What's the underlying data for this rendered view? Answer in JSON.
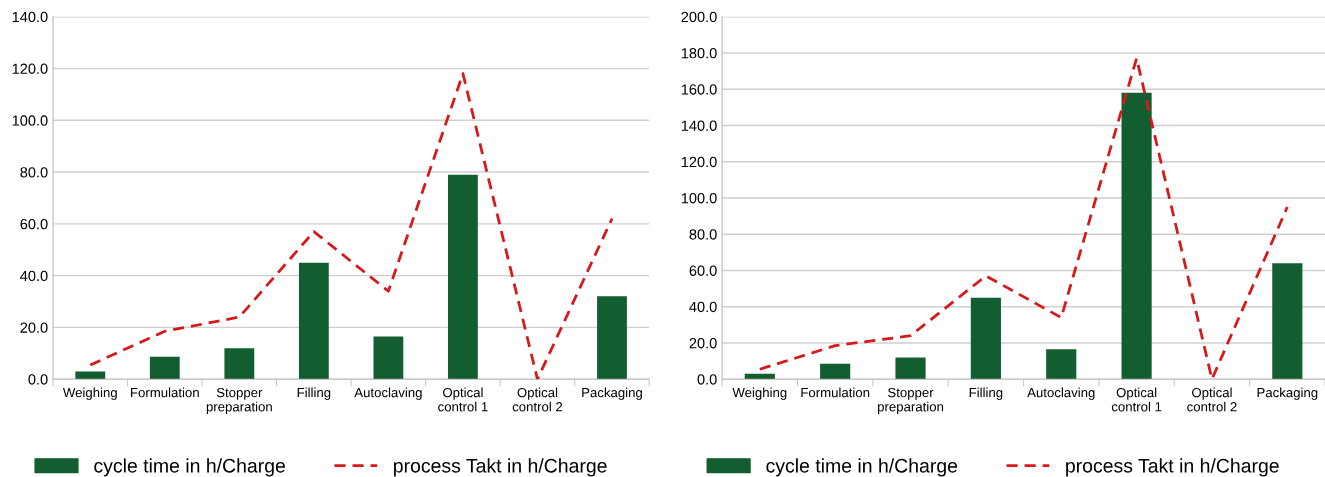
{
  "chart_data": [
    {
      "type": "bar",
      "categories": [
        "Weighing",
        "Formulation",
        "Stopper\npreparation",
        "Filling",
        "Autoclaving",
        "Optical\ncontrol 1",
        "Optical\ncontrol 2",
        "Packaging"
      ],
      "series": [
        {
          "name": "cycle time in h/Charge",
          "color": "#135e30",
          "values": [
            3,
            8.7,
            12,
            45,
            16.5,
            79,
            0,
            32
          ]
        },
        {
          "name": "process Takt in h/Charge",
          "type": "line",
          "color": "#d7191c",
          "line_style": "dashed",
          "values": [
            5.5,
            18.5,
            24,
            57,
            34,
            118,
            0,
            62
          ]
        }
      ],
      "ylim": [
        0,
        140
      ],
      "yticks": [
        {
          "value": 0,
          "label": "0.0"
        },
        {
          "value": 20,
          "label": "20.0"
        },
        {
          "value": 40,
          "label": "40.0"
        },
        {
          "value": 60,
          "label": "60.0"
        },
        {
          "value": 80,
          "label": "80.0"
        },
        {
          "value": 100,
          "label": "100.0"
        },
        {
          "value": 120,
          "label": "120.0"
        },
        {
          "value": 140,
          "label": "140.0"
        }
      ],
      "grid": "y",
      "legend": "bottom"
    },
    {
      "type": "bar",
      "categories": [
        "Weighing",
        "Formulation",
        "Stopper\npreparation",
        "Filling",
        "Autoclaving",
        "Optical\ncontrol 1",
        "Optical\ncontrol 2",
        "Packaging"
      ],
      "series": [
        {
          "name": "cycle time in h/Charge",
          "color": "#135e30",
          "values": [
            3,
            8.5,
            12,
            45,
            16.5,
            158,
            0,
            64
          ]
        },
        {
          "name": "process Takt in h/Charge",
          "type": "line",
          "color": "#d7191c",
          "line_style": "dashed",
          "values": [
            5.5,
            18.5,
            24,
            57,
            34,
            177,
            0,
            95
          ]
        }
      ],
      "ylim": [
        0,
        200
      ],
      "yticks": [
        {
          "value": 0,
          "label": "0.0"
        },
        {
          "value": 20,
          "label": "20.0"
        },
        {
          "value": 40,
          "label": "40.0"
        },
        {
          "value": 60,
          "label": "60.0"
        },
        {
          "value": 80,
          "label": "80.0"
        },
        {
          "value": 100,
          "label": "100.0"
        },
        {
          "value": 120,
          "label": "120.0"
        },
        {
          "value": 140,
          "label": "140.0"
        },
        {
          "value": 160,
          "label": "160.0"
        },
        {
          "value": 180,
          "label": "180.0"
        },
        {
          "value": 200,
          "label": "200.0"
        }
      ],
      "grid": "y",
      "legend": "bottom"
    }
  ]
}
